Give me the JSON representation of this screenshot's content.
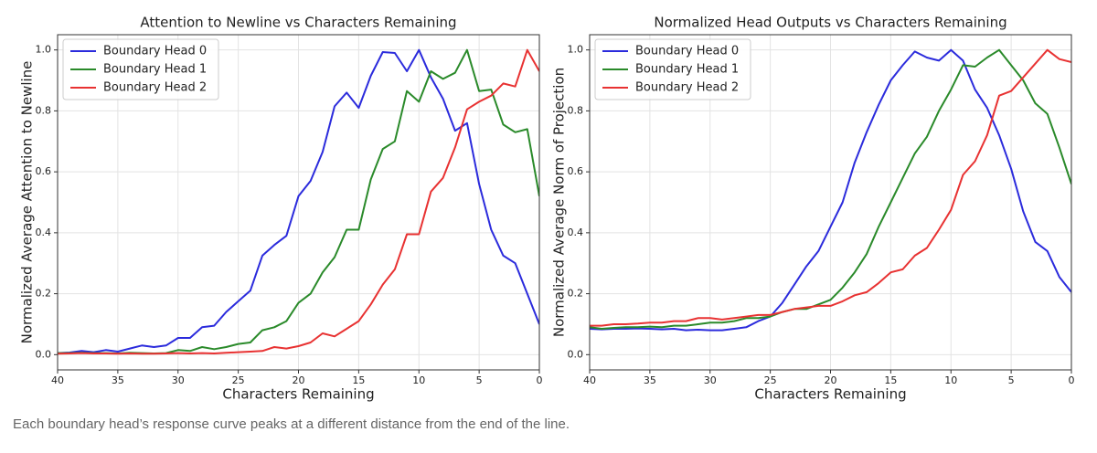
{
  "chart_data": [
    {
      "type": "line",
      "title": "Attention to Newline vs Characters Remaining",
      "xlabel": "Characters Remaining",
      "ylabel": "Normalized Average Attention to Newline",
      "x": [
        40,
        39,
        38,
        37,
        36,
        35,
        34,
        33,
        32,
        31,
        30,
        29,
        28,
        27,
        26,
        25,
        24,
        23,
        22,
        21,
        20,
        19,
        18,
        17,
        16,
        15,
        14,
        13,
        12,
        11,
        10,
        9,
        8,
        7,
        6,
        5,
        4,
        3,
        2,
        1,
        0
      ],
      "xlim": [
        40,
        0
      ],
      "xticks": [
        40,
        35,
        30,
        25,
        20,
        15,
        10,
        5,
        0
      ],
      "ylim": [
        -0.05,
        1.05
      ],
      "yticks": [
        {
          "value": 0,
          "label": "0.0"
        },
        {
          "value": 0.2,
          "label": "0.2"
        },
        {
          "value": 0.4,
          "label": "0.4"
        },
        {
          "value": 0.6,
          "label": "0.6"
        },
        {
          "value": 0.8,
          "label": "0.8"
        },
        {
          "value": 1,
          "label": "1.0"
        }
      ],
      "grid": true,
      "legend": "upper left",
      "series": [
        {
          "name": "Boundary Head 0",
          "color": "#2b2bdc",
          "values": [
            0.005,
            0.007,
            0.012,
            0.008,
            0.015,
            0.01,
            0.02,
            0.03,
            0.025,
            0.03,
            0.055,
            0.055,
            0.09,
            0.095,
            0.14,
            0.175,
            0.21,
            0.325,
            0.36,
            0.39,
            0.52,
            0.57,
            0.665,
            0.815,
            0.86,
            0.81,
            0.915,
            0.993,
            0.99,
            0.93,
            1.0,
            0.91,
            0.84,
            0.735,
            0.76,
            0.56,
            0.41,
            0.325,
            0.3,
            0.2,
            0.1
          ]
        },
        {
          "name": "Boundary Head 1",
          "color": "#2a8a2a",
          "values": [
            0.005,
            0.005,
            0.006,
            0.005,
            0.005,
            0.004,
            0.006,
            0.005,
            0.004,
            0.005,
            0.015,
            0.012,
            0.025,
            0.018,
            0.025,
            0.035,
            0.04,
            0.08,
            0.09,
            0.11,
            0.17,
            0.2,
            0.27,
            0.32,
            0.41,
            0.41,
            0.575,
            0.675,
            0.7,
            0.865,
            0.83,
            0.93,
            0.905,
            0.925,
            1.0,
            0.865,
            0.87,
            0.755,
            0.73,
            0.74,
            0.52
          ]
        },
        {
          "name": "Boundary Head 2",
          "color": "#e83232",
          "values": [
            0.003,
            0.004,
            0.005,
            0.004,
            0.004,
            0.003,
            0.004,
            0.003,
            0.003,
            0.004,
            0.005,
            0.004,
            0.005,
            0.004,
            0.006,
            0.008,
            0.01,
            0.012,
            0.025,
            0.02,
            0.028,
            0.04,
            0.07,
            0.06,
            0.085,
            0.11,
            0.165,
            0.23,
            0.28,
            0.395,
            0.395,
            0.535,
            0.58,
            0.68,
            0.805,
            0.83,
            0.85,
            0.89,
            0.88,
            1.0,
            0.93
          ]
        }
      ]
    },
    {
      "type": "line",
      "title": "Normalized Head Outputs vs Characters Remaining",
      "xlabel": "Characters Remaining",
      "ylabel": "Normalized Average Norm of Projection",
      "x": [
        40,
        39,
        38,
        37,
        36,
        35,
        34,
        33,
        32,
        31,
        30,
        29,
        28,
        27,
        26,
        25,
        24,
        23,
        22,
        21,
        20,
        19,
        18,
        17,
        16,
        15,
        14,
        13,
        12,
        11,
        10,
        9,
        8,
        7,
        6,
        5,
        4,
        3,
        2,
        1,
        0
      ],
      "xlim": [
        40,
        0
      ],
      "xticks": [
        40,
        35,
        30,
        25,
        20,
        15,
        10,
        5,
        0
      ],
      "ylim": [
        -0.05,
        1.05
      ],
      "yticks": [
        {
          "value": 0,
          "label": "0.0"
        },
        {
          "value": 0.2,
          "label": "0.2"
        },
        {
          "value": 0.4,
          "label": "0.4"
        },
        {
          "value": 0.6,
          "label": "0.6"
        },
        {
          "value": 0.8,
          "label": "0.8"
        },
        {
          "value": 1,
          "label": "1.0"
        }
      ],
      "grid": true,
      "legend": "upper left",
      "series": [
        {
          "name": "Boundary Head 0",
          "color": "#2b2bdc",
          "values": [
            0.085,
            0.083,
            0.085,
            0.085,
            0.086,
            0.085,
            0.083,
            0.085,
            0.08,
            0.082,
            0.08,
            0.08,
            0.085,
            0.09,
            0.11,
            0.125,
            0.17,
            0.23,
            0.29,
            0.34,
            0.42,
            0.5,
            0.63,
            0.73,
            0.82,
            0.9,
            0.95,
            0.995,
            0.975,
            0.965,
            1.0,
            0.965,
            0.87,
            0.81,
            0.72,
            0.61,
            0.47,
            0.37,
            0.34,
            0.255,
            0.205
          ]
        },
        {
          "name": "Boundary Head 1",
          "color": "#2a8a2a",
          "values": [
            0.09,
            0.085,
            0.088,
            0.09,
            0.09,
            0.092,
            0.09,
            0.095,
            0.095,
            0.1,
            0.105,
            0.105,
            0.11,
            0.12,
            0.12,
            0.125,
            0.14,
            0.15,
            0.15,
            0.165,
            0.18,
            0.22,
            0.27,
            0.33,
            0.42,
            0.5,
            0.58,
            0.66,
            0.715,
            0.8,
            0.87,
            0.95,
            0.945,
            0.975,
            1.0,
            0.95,
            0.9,
            0.825,
            0.79,
            0.68,
            0.56
          ]
        },
        {
          "name": "Boundary Head 2",
          "color": "#e83232",
          "values": [
            0.095,
            0.095,
            0.1,
            0.1,
            0.102,
            0.105,
            0.105,
            0.11,
            0.11,
            0.12,
            0.12,
            0.115,
            0.12,
            0.125,
            0.13,
            0.13,
            0.14,
            0.15,
            0.155,
            0.16,
            0.16,
            0.175,
            0.195,
            0.205,
            0.235,
            0.27,
            0.28,
            0.325,
            0.35,
            0.41,
            0.475,
            0.59,
            0.635,
            0.72,
            0.85,
            0.865,
            0.91,
            0.955,
            1.0,
            0.97,
            0.96
          ]
        }
      ]
    }
  ],
  "caption": "Each boundary head’s response curve peaks at a different distance from the end of the line."
}
